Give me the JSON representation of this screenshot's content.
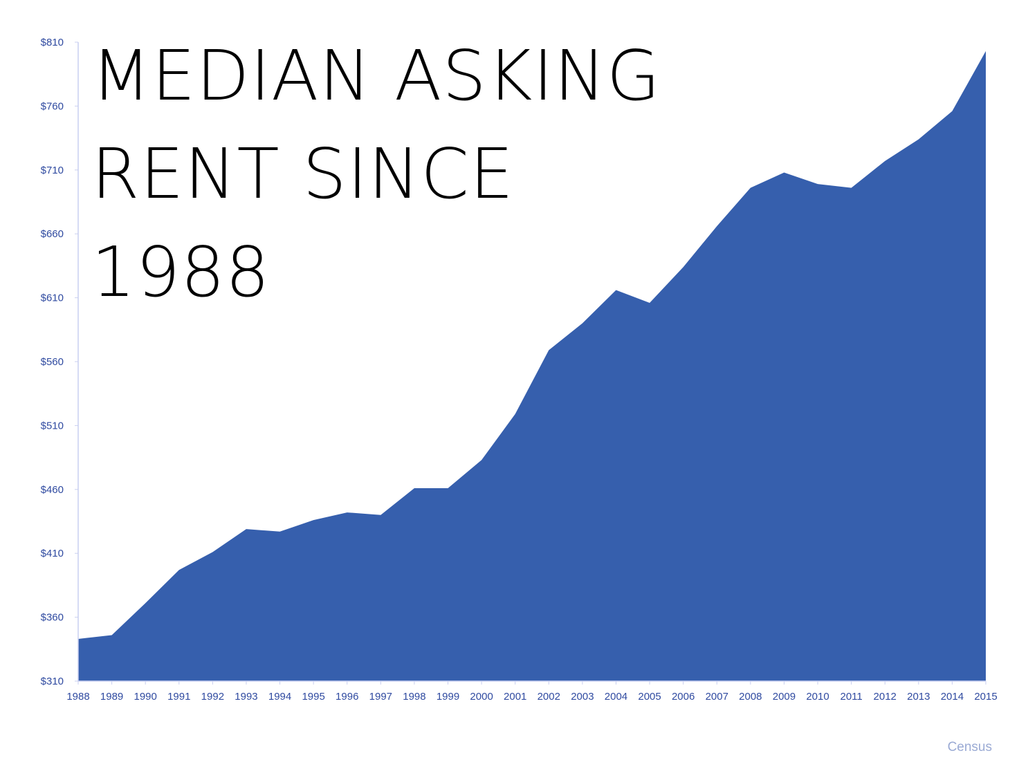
{
  "title_lines": [
    "MEDIAN ASKING",
    "RENT SINCE",
    "1988"
  ],
  "source": "Census",
  "colors": {
    "area": "#365fad",
    "axis": "#c9cff0",
    "tick_text": "#2f4aa0",
    "source_text": "#9aaad4"
  },
  "chart_data": {
    "type": "area",
    "title": "MEDIAN ASKING RENT SINCE 1988",
    "xlabel": "",
    "ylabel": "",
    "x": [
      1988,
      1989,
      1990,
      1991,
      1992,
      1993,
      1994,
      1995,
      1996,
      1997,
      1998,
      1999,
      2000,
      2001,
      2002,
      2003,
      2004,
      2005,
      2006,
      2007,
      2008,
      2009,
      2010,
      2011,
      2012,
      2013,
      2014,
      2015
    ],
    "series": [
      {
        "values": [
          343,
          346,
          371,
          397,
          411,
          429,
          427,
          436,
          442,
          440,
          461,
          461,
          483,
          519,
          569,
          590,
          616,
          606,
          634,
          666,
          696,
          708,
          699,
          696,
          717,
          734,
          756,
          803
        ]
      }
    ],
    "ylim": [
      310,
      810
    ],
    "yticks": [
      "$310",
      "$360",
      "$410",
      "$460",
      "$510",
      "$560",
      "$610",
      "$660",
      "$710",
      "$760",
      "$810"
    ],
    "xticks": [
      "1988",
      "1989",
      "1990",
      "1991",
      "1992",
      "1993",
      "1994",
      "1995",
      "1996",
      "1997",
      "1998",
      "1999",
      "2000",
      "2001",
      "2002",
      "2003",
      "2004",
      "2005",
      "2006",
      "2007",
      "2008",
      "2009",
      "2010",
      "2011",
      "2012",
      "2013",
      "2014",
      "2015"
    ],
    "grid": false,
    "legend": "none"
  }
}
